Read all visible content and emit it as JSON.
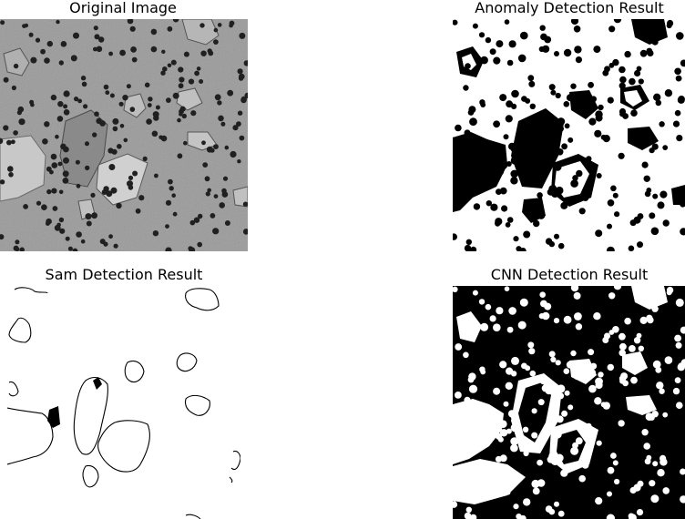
{
  "panels": [
    {
      "title": "Original Image"
    },
    {
      "title": "Anomaly Detection Result"
    },
    {
      "title": "Sam Detection Result"
    },
    {
      "title": "CNN Detection Result"
    }
  ]
}
